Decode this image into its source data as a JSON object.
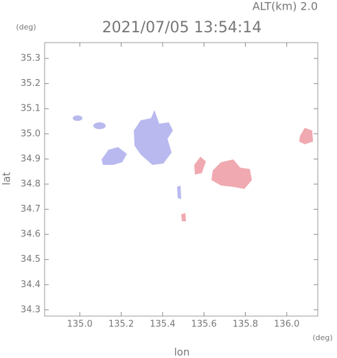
{
  "chart_data": {
    "type": "map",
    "title": "2021/07/05 13:54:14",
    "annotation": "ALT(km) 2.0",
    "ylabel": "lat",
    "xlabel": "lon",
    "yunit": "(deg)",
    "xunit": "(deg)",
    "xlim": [
      134.83,
      136.15
    ],
    "ylim": [
      34.275,
      35.363
    ],
    "xticks": [
      {
        "value": 135,
        "label": "135.0"
      },
      {
        "value": 135.2,
        "label": "135.2"
      },
      {
        "value": 135.4,
        "label": "135.4"
      },
      {
        "value": 135.6,
        "label": "135.6"
      },
      {
        "value": 135.8,
        "label": "135.8"
      },
      {
        "value": 136,
        "label": "136.0"
      }
    ],
    "yticks": [
      34.3,
      34.4,
      34.5,
      34.6,
      34.7,
      34.8,
      34.9,
      {
        "value": 35,
        "label": "35.0"
      },
      35.1,
      35.2,
      35.3
    ]
  }
}
